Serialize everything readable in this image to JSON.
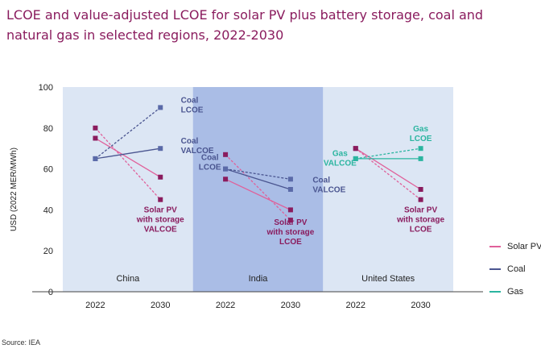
{
  "title_lines": [
    "LCOE and value-adjusted LCOE for solar PV plus battery storage, coal and",
    "natural gas in selected regions, 2022-2030"
  ],
  "source": "Source: IEA",
  "colors": {
    "solar": "#8a1c5e",
    "solar_line": "#e0609a",
    "coal": "#5a6aa8",
    "coal_line": "#4a5590",
    "gas": "#2bb5a0",
    "panel_light": "#dce6f4",
    "panel_dark": "#aabde6",
    "title": "#8a1c5e"
  },
  "legend": [
    {
      "name": "Solar PV",
      "color": "#e0609a"
    },
    {
      "name": "Coal",
      "color": "#4a5590"
    },
    {
      "name": "Gas",
      "color": "#2bb5a0"
    }
  ],
  "chart_data": {
    "type": "line",
    "ylabel": "USD (2022 MER/MWh)",
    "ylim": [
      0,
      100
    ],
    "yticks": [
      0,
      20,
      40,
      60,
      80,
      100
    ],
    "grid": false,
    "legend_position": "right",
    "regions": [
      {
        "name": "China",
        "shade": "light",
        "x": [
          "2022",
          "2030"
        ],
        "series": [
          {
            "tech": "Solar PV",
            "metric": "LCOE",
            "values": [
              75,
              56
            ],
            "style": "solid"
          },
          {
            "tech": "Solar PV",
            "metric": "VALCOE",
            "values": [
              80,
              45
            ],
            "style": "dashed"
          },
          {
            "tech": "Coal",
            "metric": "LCOE",
            "values": [
              65,
              90
            ],
            "style": "dashed"
          },
          {
            "tech": "Coal",
            "metric": "VALCOE",
            "values": [
              65,
              70
            ],
            "style": "solid"
          }
        ],
        "annotations": [
          {
            "text": [
              "Coal",
              "LCOE"
            ],
            "tech": "Coal"
          },
          {
            "text": [
              "Coal",
              "VALCOE"
            ],
            "tech": "Coal"
          },
          {
            "text": [
              "Solar PV",
              "with storage",
              "VALCOE"
            ],
            "tech": "Solar PV"
          }
        ]
      },
      {
        "name": "India",
        "shade": "dark",
        "x": [
          "2022",
          "2030"
        ],
        "series": [
          {
            "tech": "Solar PV",
            "metric": "LCOE",
            "values": [
              67,
              35
            ],
            "style": "dashed"
          },
          {
            "tech": "Solar PV",
            "metric": "VALCOE",
            "values": [
              55,
              40
            ],
            "style": "solid"
          },
          {
            "tech": "Coal",
            "metric": "LCOE",
            "values": [
              60,
              55
            ],
            "style": "dashed"
          },
          {
            "tech": "Coal",
            "metric": "VALCOE",
            "values": [
              60,
              50
            ],
            "style": "solid"
          }
        ],
        "annotations": [
          {
            "text": [
              "Coal",
              "LCOE"
            ],
            "tech": "Coal"
          },
          {
            "text": [
              "Coal",
              "VALCOE"
            ],
            "tech": "Coal"
          },
          {
            "text": [
              "Solar PV",
              "with storage",
              "LCOE"
            ],
            "tech": "Solar PV"
          }
        ]
      },
      {
        "name": "United States",
        "shade": "light",
        "x": [
          "2022",
          "2030"
        ],
        "series": [
          {
            "tech": "Solar PV",
            "metric": "LCOE",
            "values": [
              70,
              45
            ],
            "style": "dashed"
          },
          {
            "tech": "Solar PV",
            "metric": "VALCOE",
            "values": [
              70,
              50
            ],
            "style": "solid"
          },
          {
            "tech": "Gas",
            "metric": "LCOE",
            "values": [
              65,
              70
            ],
            "style": "dashed"
          },
          {
            "tech": "Gas",
            "metric": "VALCOE",
            "values": [
              65,
              65
            ],
            "style": "solid"
          }
        ],
        "annotations": [
          {
            "text": [
              "Gas",
              "LCOE"
            ],
            "tech": "Gas"
          },
          {
            "text": [
              "Gas",
              "VALCOE"
            ],
            "tech": "Gas"
          },
          {
            "text": [
              "Solar PV",
              "with storage",
              "LCOE"
            ],
            "tech": "Solar PV"
          }
        ]
      }
    ]
  }
}
